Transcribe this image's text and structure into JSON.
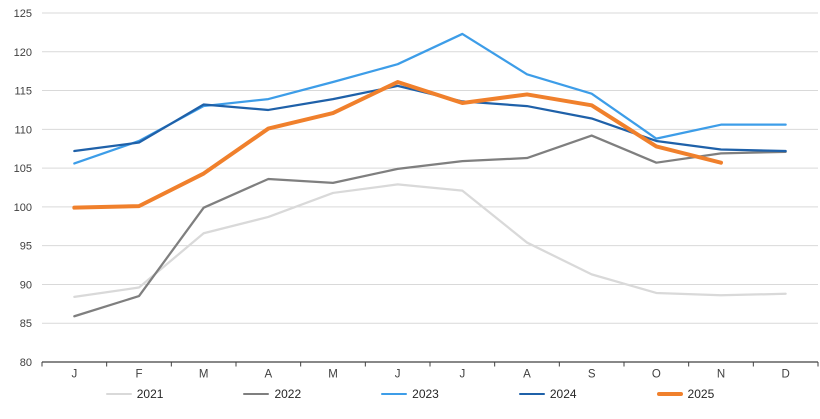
{
  "chart_data": {
    "type": "line",
    "title": "",
    "xlabel": "",
    "ylabel": "",
    "categories": [
      "J",
      "F",
      "M",
      "A",
      "M",
      "J",
      "J",
      "A",
      "S",
      "O",
      "N",
      "D"
    ],
    "y_axis": {
      "min": 80,
      "max": 125,
      "tick_step": 5,
      "ticks": [
        80,
        85,
        90,
        95,
        100,
        105,
        110,
        115,
        120,
        125
      ]
    },
    "grid": "horizontal",
    "legend_position": "bottom",
    "series": [
      {
        "name": "2021",
        "color": "#D9D9D9",
        "stroke_width": 2.25,
        "values": [
          88.4,
          89.6,
          96.6,
          98.7,
          101.8,
          102.9,
          102.1,
          95.4,
          91.3,
          88.9,
          88.6,
          88.8
        ]
      },
      {
        "name": "2022",
        "color": "#7F7F7F",
        "stroke_width": 2.25,
        "values": [
          85.9,
          88.5,
          99.9,
          103.6,
          103.1,
          104.9,
          105.9,
          106.3,
          109.2,
          105.7,
          106.9,
          107.1
        ]
      },
      {
        "name": "2023",
        "color": "#3D9DE8",
        "stroke_width": 2.25,
        "values": [
          105.6,
          108.5,
          113.0,
          113.9,
          116.1,
          118.4,
          122.3,
          117.1,
          114.6,
          108.8,
          110.6,
          110.6
        ]
      },
      {
        "name": "2024",
        "color": "#1F61A9",
        "stroke_width": 2.25,
        "values": [
          107.2,
          108.3,
          113.2,
          112.5,
          113.9,
          115.6,
          113.6,
          113.0,
          111.4,
          108.5,
          107.4,
          107.2
        ]
      },
      {
        "name": "2025",
        "color": "#F0802C",
        "stroke_width": 4,
        "values": [
          99.9,
          100.1,
          104.3,
          110.1,
          112.1,
          116.1,
          113.4,
          114.5,
          113.1,
          107.8,
          105.7
        ]
      }
    ],
    "axis_colors": {
      "gridline": "#D9D9D9",
      "axis_line": "#404040",
      "tick_label": "#404040"
    }
  }
}
